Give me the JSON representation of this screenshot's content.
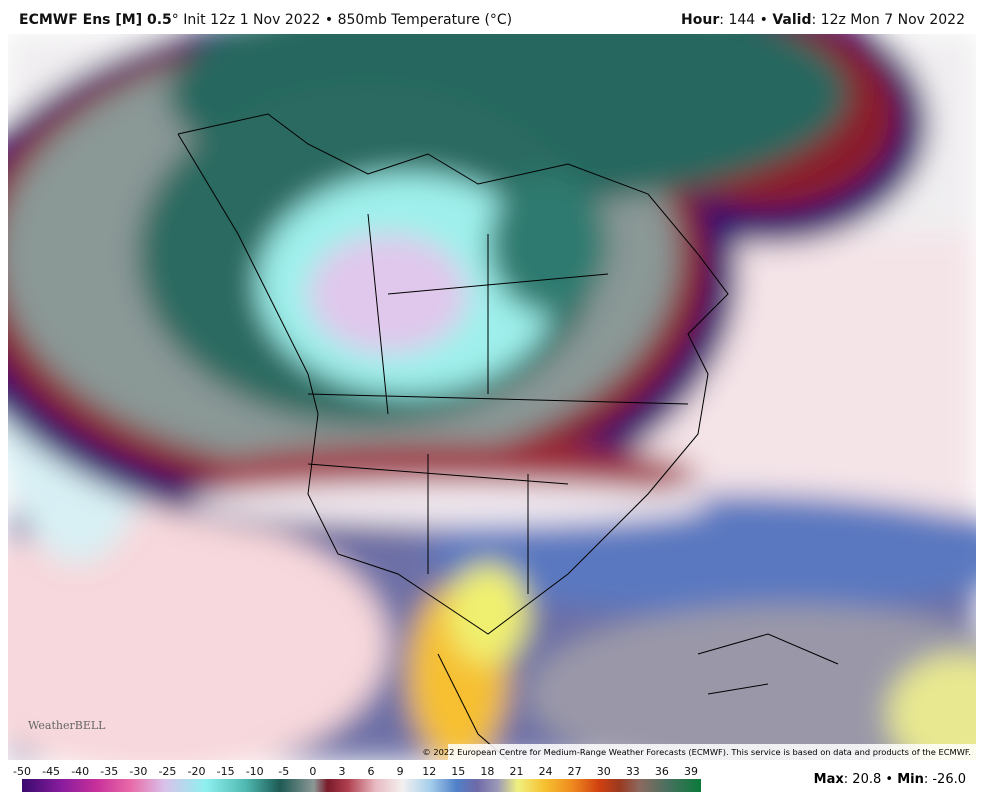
{
  "header": {
    "model": "ECMWF Ens [M] 0.5",
    "subtitle": "° Init 12z 1 Nov 2022 • 850mb Temperature (°C)",
    "hour_label": "Hour",
    "hour": "144",
    "valid_label": "Valid",
    "valid": "12z Mon 7 Nov 2022"
  },
  "map": {
    "copyright": "© 2022 European Centre for Medium-Range Weather Forecasts (ECMWF). This service is based on data and products of the ECMWF.",
    "logo": "WeatherBELL"
  },
  "colorbar": {
    "labels": [
      -50,
      -45,
      -40,
      -35,
      -30,
      -25,
      -20,
      -15,
      -10,
      -5,
      0,
      3,
      6,
      9,
      12,
      15,
      18,
      21,
      24,
      27,
      30,
      33,
      36,
      39
    ]
  },
  "footer": {
    "max_label": "Max",
    "max": "20.8",
    "min_label": "Min",
    "min": "-26.0"
  }
}
